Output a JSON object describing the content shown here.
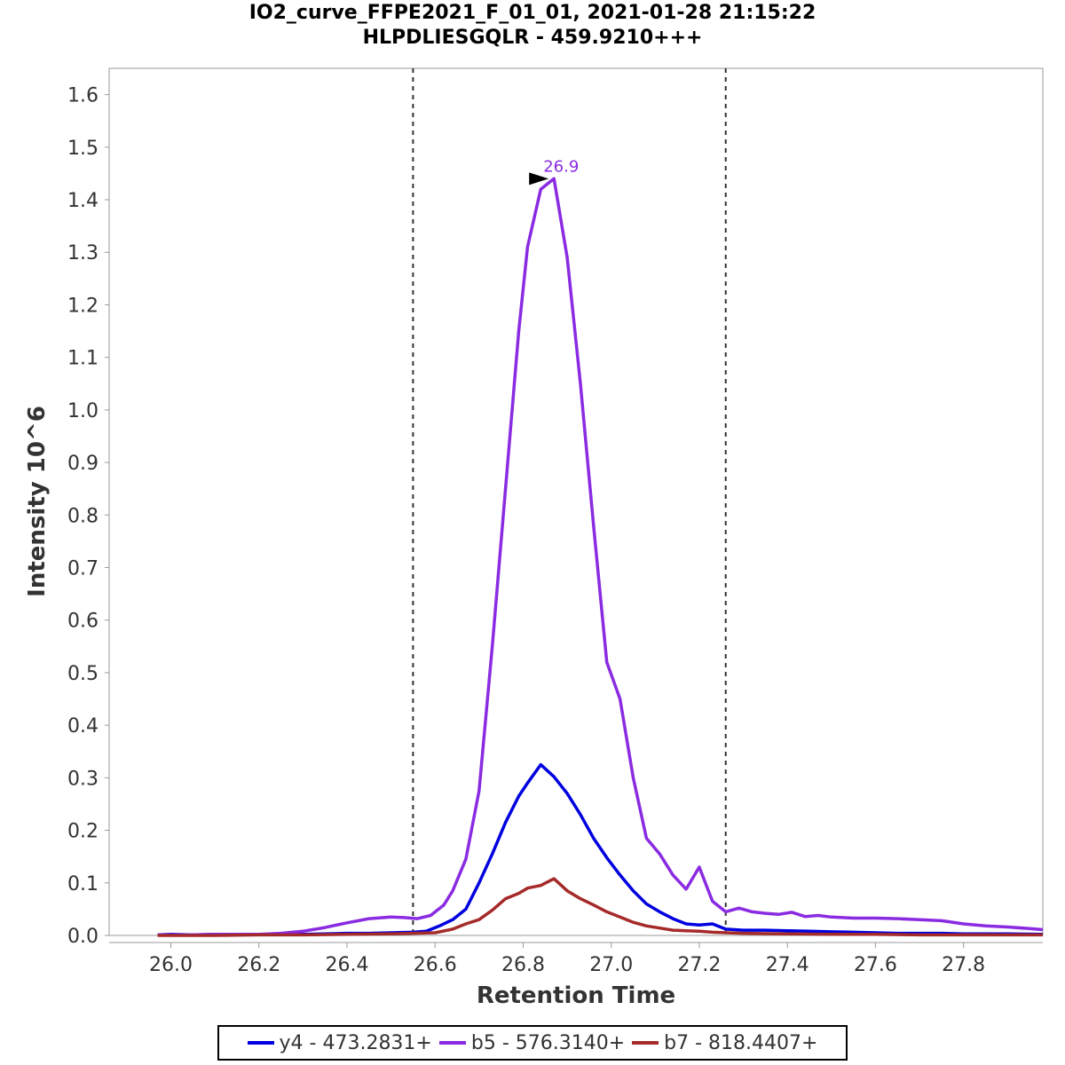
{
  "chart_data": {
    "type": "line",
    "title": "IO2_curve_FFPE2021_F_01_01, 2021-01-28 21:15:22",
    "subtitle": "HLPDLIESGQLR - 459.9210+++",
    "xlabel": "Retention Time",
    "ylabel": "Intensity 10^6",
    "xlim": [
      25.86,
      27.98
    ],
    "ylim": [
      0.0,
      1.65
    ],
    "x_ticks": [
      "26.0",
      "26.2",
      "26.4",
      "26.6",
      "26.8",
      "27.0",
      "27.2",
      "27.4",
      "27.6",
      "27.8"
    ],
    "y_ticks": [
      "0.0",
      "0.1",
      "0.2",
      "0.3",
      "0.4",
      "0.5",
      "0.6",
      "0.7",
      "0.8",
      "0.9",
      "1.0",
      "1.1",
      "1.2",
      "1.3",
      "1.4",
      "1.5",
      "1.6"
    ],
    "integration_bounds": [
      26.55,
      27.26
    ],
    "peak_annotation": {
      "x": 26.87,
      "y": 1.44,
      "label": "26.9",
      "color": "#8a2be2"
    },
    "legend_position": "bottom",
    "grid": false,
    "series": [
      {
        "name": "y4 - 473.2831+",
        "color": "#0000e0",
        "x": [
          25.97,
          26.0,
          26.05,
          26.1,
          26.15,
          26.2,
          26.25,
          26.3,
          26.35,
          26.4,
          26.45,
          26.5,
          26.55,
          26.58,
          26.61,
          26.64,
          26.67,
          26.7,
          26.73,
          26.76,
          26.79,
          26.81,
          26.84,
          26.87,
          26.9,
          26.93,
          26.96,
          26.99,
          27.02,
          27.05,
          27.08,
          27.11,
          27.14,
          27.17,
          27.2,
          27.23,
          27.26,
          27.3,
          27.35,
          27.4,
          27.45,
          27.5,
          27.55,
          27.6,
          27.65,
          27.7,
          27.75,
          27.8,
          27.85,
          27.9,
          27.98
        ],
        "y": [
          0.001,
          0.002,
          0.001,
          0.002,
          0.002,
          0.002,
          0.002,
          0.002,
          0.003,
          0.004,
          0.004,
          0.005,
          0.006,
          0.008,
          0.018,
          0.03,
          0.05,
          0.1,
          0.155,
          0.215,
          0.265,
          0.29,
          0.325,
          0.302,
          0.27,
          0.23,
          0.185,
          0.148,
          0.115,
          0.085,
          0.06,
          0.045,
          0.032,
          0.022,
          0.02,
          0.022,
          0.012,
          0.01,
          0.01,
          0.009,
          0.008,
          0.007,
          0.006,
          0.005,
          0.004,
          0.004,
          0.004,
          0.003,
          0.003,
          0.003,
          0.002
        ]
      },
      {
        "name": "b5 - 576.3140+",
        "color": "#8a2be2",
        "x": [
          25.97,
          26.0,
          26.05,
          26.1,
          26.15,
          26.2,
          26.25,
          26.3,
          26.35,
          26.4,
          26.45,
          26.5,
          26.53,
          26.56,
          26.59,
          26.62,
          26.64,
          26.67,
          26.7,
          26.73,
          26.76,
          26.79,
          26.81,
          26.84,
          26.87,
          26.9,
          26.93,
          26.96,
          26.99,
          27.02,
          27.05,
          27.08,
          27.11,
          27.14,
          27.17,
          27.2,
          27.23,
          27.26,
          27.29,
          27.32,
          27.35,
          27.38,
          27.41,
          27.44,
          27.47,
          27.5,
          27.55,
          27.6,
          27.65,
          27.7,
          27.75,
          27.8,
          27.85,
          27.9,
          27.95,
          27.98
        ],
        "y": [
          0.001,
          0.001,
          0.001,
          0.002,
          0.002,
          0.002,
          0.004,
          0.008,
          0.015,
          0.024,
          0.032,
          0.035,
          0.034,
          0.032,
          0.038,
          0.058,
          0.085,
          0.145,
          0.275,
          0.55,
          0.85,
          1.15,
          1.31,
          1.42,
          1.44,
          1.29,
          1.05,
          0.78,
          0.52,
          0.45,
          0.3,
          0.185,
          0.155,
          0.115,
          0.088,
          0.13,
          0.065,
          0.045,
          0.052,
          0.045,
          0.042,
          0.04,
          0.044,
          0.036,
          0.038,
          0.035,
          0.033,
          0.033,
          0.032,
          0.03,
          0.028,
          0.022,
          0.018,
          0.016,
          0.013,
          0.011
        ]
      },
      {
        "name": "b7 - 818.4407+",
        "color": "#a52a2a",
        "x": [
          25.97,
          26.1,
          26.2,
          26.3,
          26.4,
          26.5,
          26.55,
          26.6,
          26.64,
          26.67,
          26.7,
          26.73,
          26.76,
          26.79,
          26.81,
          26.84,
          26.87,
          26.9,
          26.93,
          26.96,
          26.99,
          27.02,
          27.05,
          27.08,
          27.11,
          27.14,
          27.17,
          27.2,
          27.23,
          27.26,
          27.3,
          27.4,
          27.5,
          27.6,
          27.7,
          27.8,
          27.9,
          27.98
        ],
        "y": [
          0.0,
          0.0,
          0.001,
          0.001,
          0.002,
          0.003,
          0.004,
          0.005,
          0.012,
          0.022,
          0.03,
          0.048,
          0.07,
          0.08,
          0.09,
          0.095,
          0.108,
          0.085,
          0.07,
          0.058,
          0.045,
          0.035,
          0.025,
          0.018,
          0.014,
          0.01,
          0.009,
          0.008,
          0.006,
          0.005,
          0.004,
          0.003,
          0.002,
          0.002,
          0.001,
          0.001,
          0.001,
          0.001
        ]
      }
    ]
  }
}
